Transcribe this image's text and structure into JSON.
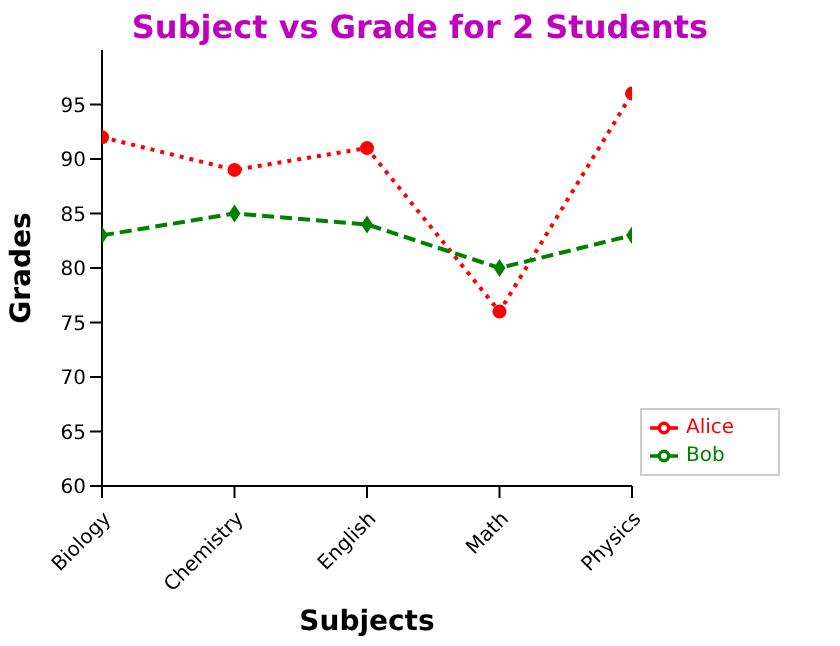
{
  "chart_data": {
    "type": "line",
    "title": "Subject vs Grade for 2 Students",
    "xlabel": "Subjects",
    "ylabel": "Grades",
    "categories": [
      "Biology",
      "Chemistry",
      "English",
      "Math",
      "Physics"
    ],
    "series": [
      {
        "name": "Alice",
        "color": "#ff0000",
        "values": [
          92,
          89,
          91,
          76,
          96
        ],
        "marker": "circle",
        "line_style": "dotted"
      },
      {
        "name": "Bob",
        "color": "#008000",
        "values": [
          83,
          85,
          84,
          80,
          83
        ],
        "marker": "diamond",
        "line_style": "dashed"
      }
    ],
    "ylim": [
      60,
      100
    ],
    "yticks": [
      60,
      65,
      70,
      75,
      80,
      85,
      90,
      95
    ],
    "grid": false,
    "legend": "bottom right"
  }
}
